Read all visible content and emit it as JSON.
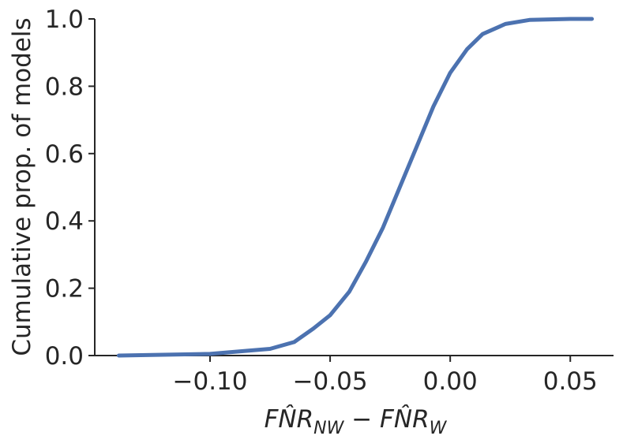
{
  "chart_data": {
    "type": "line",
    "ylabel": "Cumulative prop. of models",
    "xlabel_parts": [
      "FN̂R",
      "NW",
      " − FN̂R",
      "W"
    ],
    "color": "#4c72b0",
    "x": [
      -0.138,
      -0.1,
      -0.075,
      -0.065,
      -0.057,
      -0.05,
      -0.042,
      -0.035,
      -0.028,
      -0.021,
      -0.014,
      -0.007,
      0.0,
      0.007,
      0.0135,
      0.023,
      0.033,
      0.05,
      0.059
    ],
    "values": [
      0.0,
      0.005,
      0.02,
      0.04,
      0.08,
      0.12,
      0.19,
      0.28,
      0.38,
      0.5,
      0.62,
      0.74,
      0.84,
      0.91,
      0.955,
      0.985,
      0.997,
      1.0,
      1.0
    ],
    "xlim": [
      -0.148,
      0.068
    ],
    "ylim": [
      0,
      1.0
    ],
    "xticks": [
      {
        "value": -0.1,
        "label": "−0.10"
      },
      {
        "value": -0.05,
        "label": "−0.05"
      },
      {
        "value": 0,
        "label": "0.00"
      },
      {
        "value": 0.05,
        "label": "0.05"
      }
    ],
    "yticks": [
      {
        "value": 0,
        "label": "0.0"
      },
      {
        "value": 0.2,
        "label": "0.2"
      },
      {
        "value": 0.4,
        "label": "0.4"
      },
      {
        "value": 0.6,
        "label": "0.6"
      },
      {
        "value": 0.8,
        "label": "0.8"
      },
      {
        "value": 1.0,
        "label": "1.0"
      }
    ],
    "grid": false
  }
}
